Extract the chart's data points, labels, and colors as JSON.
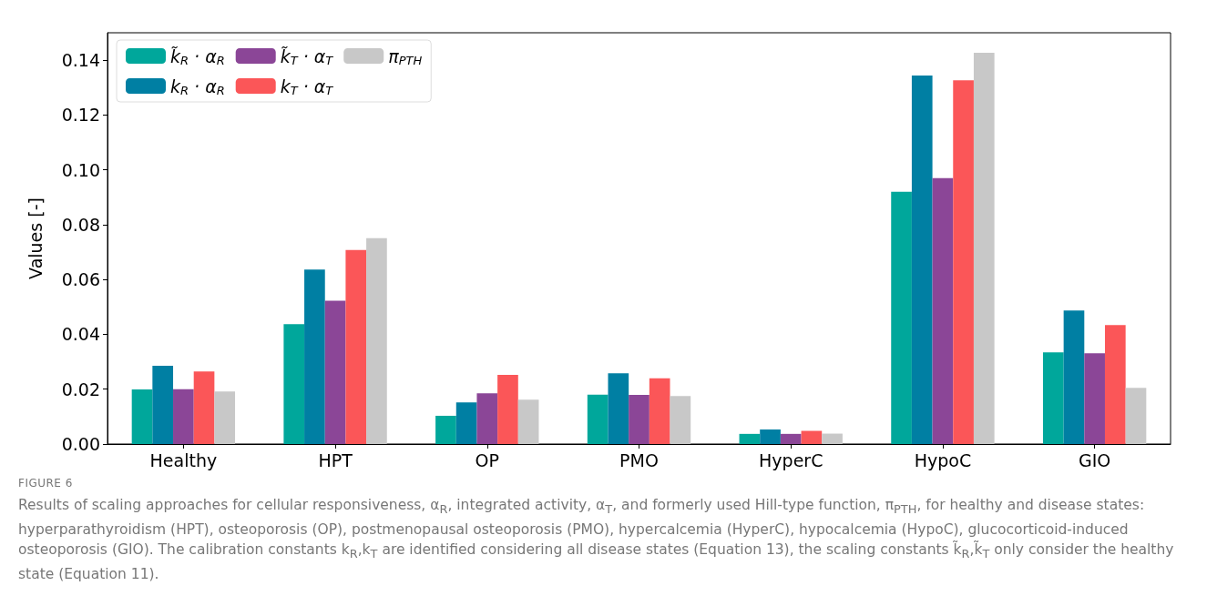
{
  "chart_data": {
    "type": "bar",
    "categories": [
      "Healthy",
      "HPT",
      "OP",
      "PMO",
      "HyperC",
      "HypoC",
      "GIO"
    ],
    "ylabel": "Values [-]",
    "series": [
      {
        "name": "k̃$_{R}$ · α$_{R}$",
        "color": "#00a79b",
        "values": [
          0.0199,
          0.0437,
          0.0103,
          0.018,
          0.0037,
          0.092,
          0.0334
        ]
      },
      {
        "name": "k$_{R}$ · α$_{R}$",
        "color": "#007fa3",
        "values": [
          0.0285,
          0.0636,
          0.0152,
          0.0258,
          0.0053,
          0.1344,
          0.0487
        ]
      },
      {
        "name": "k̃$_{T}$ · α$_{T}$",
        "color": "#8b4697",
        "values": [
          0.02,
          0.0523,
          0.0185,
          0.0179,
          0.0037,
          0.097,
          0.0331
        ]
      },
      {
        "name": "k$_{T}$ · α$_{T}$",
        "color": "#fb5658",
        "values": [
          0.0265,
          0.0708,
          0.0252,
          0.024,
          0.0048,
          0.1327,
          0.0434
        ]
      },
      {
        "name": "π$_{PTH}$",
        "color": "#c8c8c8",
        "values": [
          0.0192,
          0.0751,
          0.0162,
          0.0175,
          0.0038,
          0.1427,
          0.0205
        ]
      }
    ],
    "ylim": [
      0,
      0.15
    ],
    "yticks": [
      {
        "value": 0,
        "label": "0.00"
      },
      {
        "value": 0.02,
        "label": "0.02"
      },
      {
        "value": 0.04,
        "label": "0.04"
      },
      {
        "value": 0.06,
        "label": "0.06"
      },
      {
        "value": 0.08,
        "label": "0.08"
      },
      {
        "value": 0.1,
        "label": "0.10"
      },
      {
        "value": 0.12,
        "label": "0.12"
      },
      {
        "value": 0.14,
        "label": "0.14"
      }
    ],
    "grid": false,
    "legend": "top left",
    "annotations": [
      "FIGURE 6",
      "Results of scaling approaches for cellular responsiveness, α$_{R}$, integrated activity, α$_{T}$, and formerly used Hill-type function, π$_{PTH}$, for healthy and disease states: hyperparathyroidism (HPT), osteoporosis (OP), postmenopausal osteoporosis (PMO), hypercalcemia (HyperC), hypocalcemia (HypoC), glucocorticoid-induced osteoporosis (GIO). The calibration constants k$_{R}$,k$_{T}$ are identified considering all disease states (Equation 13), the scaling constants k̃$_{R}$,k̃$_{T}$ only consider the healthy state (Equation 11)."
    ]
  }
}
